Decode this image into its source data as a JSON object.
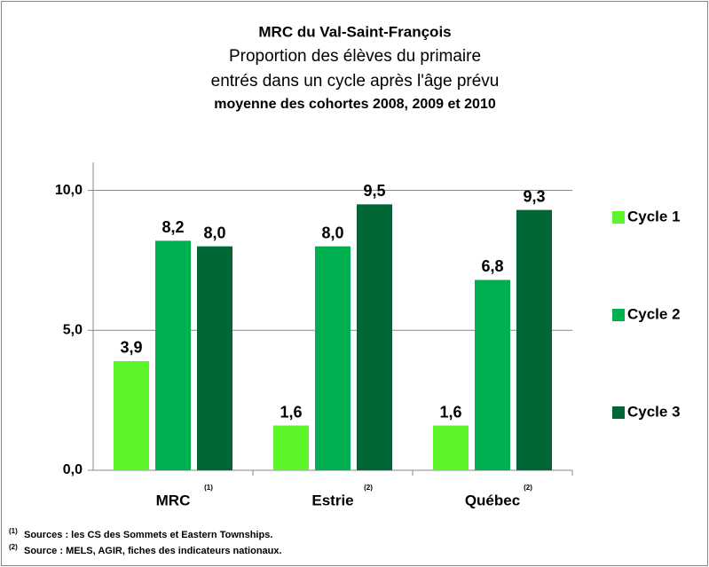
{
  "chart_data": {
    "type": "bar",
    "title": "MRC du Val-Saint-François",
    "subtitle": [
      "Proportion des élèves du primaire",
      "entrés dans un cycle après l'âge prévu"
    ],
    "subtitle_bold": "moyenne des cohortes 2008, 2009 et 2010",
    "categories": [
      "MRC",
      "Estrie",
      "Québec"
    ],
    "category_notes": [
      "(1)",
      "(2)",
      "(2)"
    ],
    "series": [
      {
        "name": "Cycle 1",
        "color": "#5cf52a",
        "values": [
          3.9,
          1.6,
          1.6
        ],
        "value_labels": [
          "3,9",
          "1,6",
          "1,6"
        ]
      },
      {
        "name": "Cycle 2",
        "color": "#00b050",
        "values": [
          8.2,
          8.0,
          6.8
        ],
        "value_labels": [
          "8,2",
          "8,0",
          "6,8"
        ]
      },
      {
        "name": "Cycle 3",
        "color": "#006633",
        "values": [
          8.0,
          9.5,
          9.3
        ],
        "value_labels": [
          "8,0",
          "9,5",
          "9,3"
        ]
      }
    ],
    "ylim": [
      0,
      11
    ],
    "yticks": [
      {
        "value": 0,
        "label": "0,0"
      },
      {
        "value": 5,
        "label": "5,0"
      },
      {
        "value": 10,
        "label": "10,0"
      }
    ],
    "grid": true,
    "legend": "right",
    "footnotes": [
      {
        "mark": "(1)",
        "text": "Sources : les CS des Sommets et Eastern Townships."
      },
      {
        "mark": "(2)",
        "text": "Source : MELS, AGIR, fiches des indicateurs nationaux."
      }
    ]
  }
}
